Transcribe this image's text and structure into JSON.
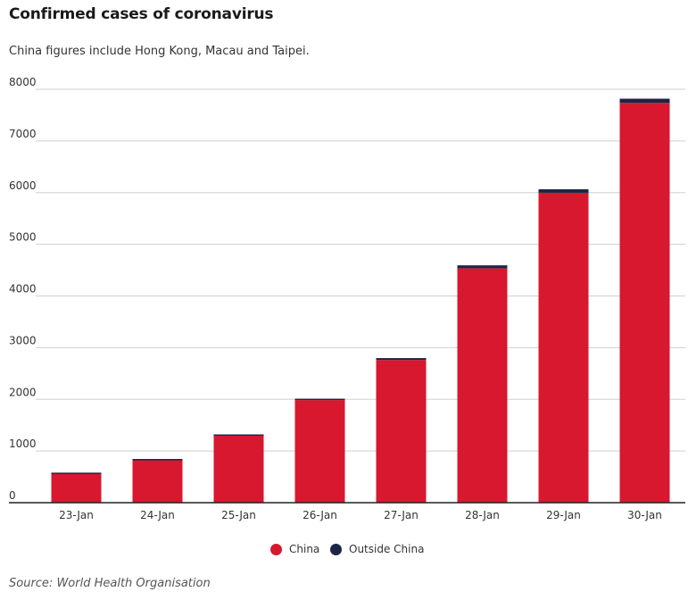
{
  "header": {
    "title": "Confirmed cases of coronavirus",
    "subtitle": "China figures include Hong Kong, Macau and Taipei."
  },
  "footer": {
    "source": "Source: World Health Organisation"
  },
  "colors": {
    "china": "#d7182f",
    "outside_china": "#1c2545",
    "grid": "#cfcfcf",
    "axis": "#222222"
  },
  "chart_data": {
    "type": "bar",
    "stacked": true,
    "categories": [
      "23-Jan",
      "24-Jan",
      "25-Jan",
      "26-Jan",
      "27-Jan",
      "28-Jan",
      "29-Jan",
      "30-Jan"
    ],
    "series": [
      {
        "name": "China",
        "values": [
          571,
          830,
          1297,
          1985,
          2761,
          4537,
          5997,
          7736
        ]
      },
      {
        "name": "Outside China",
        "values": [
          10,
          16,
          24,
          27,
          37,
          56,
          68,
          82
        ]
      }
    ],
    "ylim": [
      0,
      8000
    ],
    "yticks": [
      0,
      1000,
      2000,
      3000,
      4000,
      5000,
      6000,
      7000,
      8000
    ],
    "grid": true,
    "legend": "bottom-center",
    "title": "",
    "xlabel": "",
    "ylabel": ""
  }
}
